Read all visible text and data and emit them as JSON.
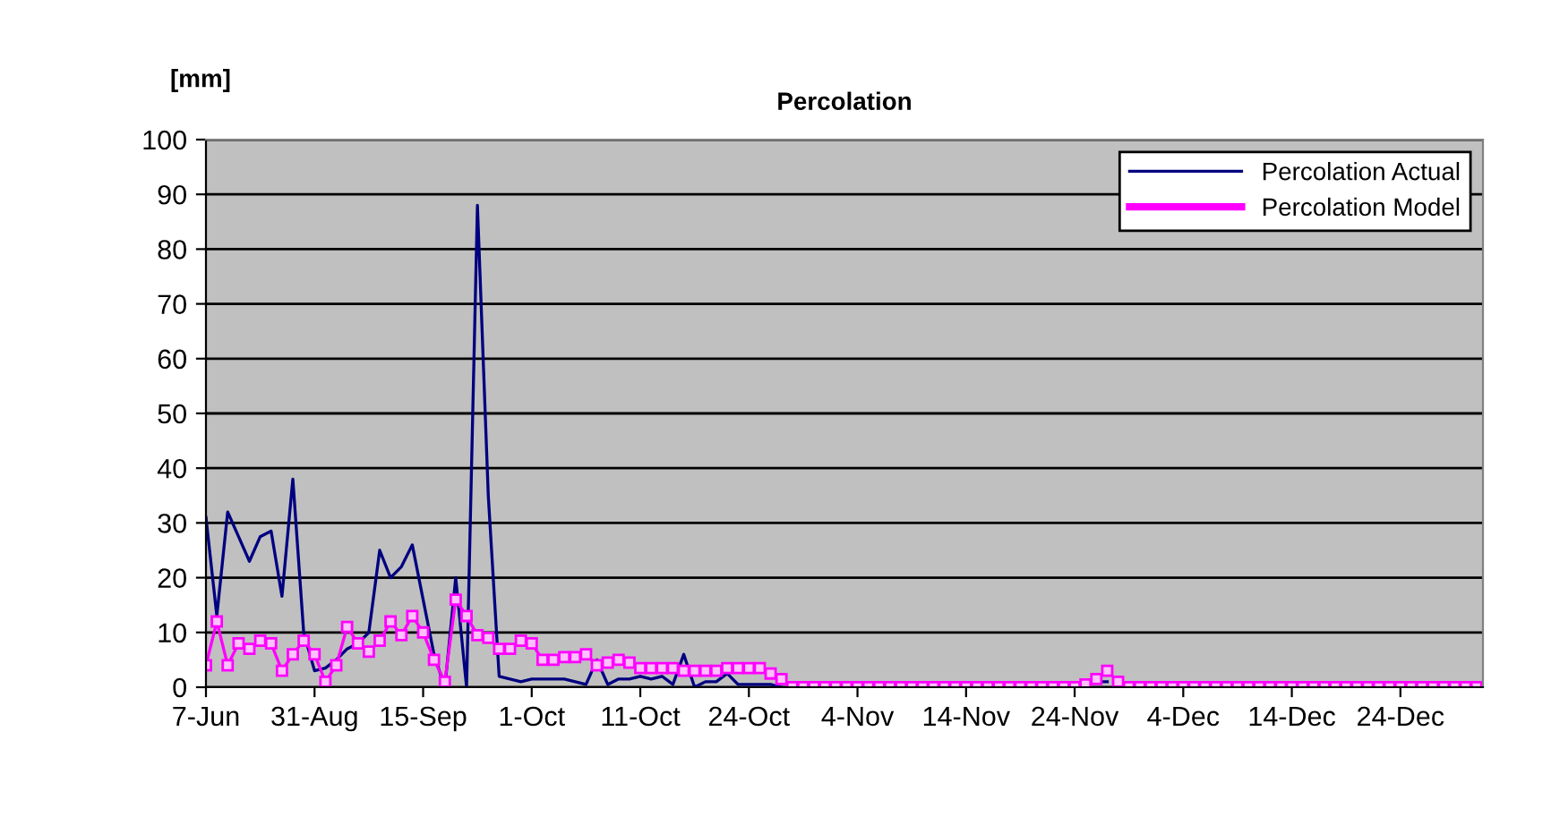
{
  "chart_data": {
    "type": "line",
    "title": "Percolation",
    "ylabel": "[mm]",
    "categories": [
      "7-Jun",
      null,
      null,
      null,
      null,
      null,
      null,
      null,
      null,
      null,
      "31-Aug",
      null,
      null,
      null,
      null,
      null,
      null,
      null,
      null,
      null,
      "15-Sep",
      null,
      null,
      null,
      null,
      null,
      null,
      null,
      null,
      null,
      "1-Oct",
      null,
      null,
      null,
      null,
      null,
      null,
      null,
      null,
      null,
      "11-Oct",
      null,
      null,
      null,
      null,
      null,
      null,
      null,
      null,
      null,
      "24-Oct",
      null,
      null,
      null,
      null,
      null,
      null,
      null,
      null,
      null,
      "4-Nov",
      null,
      null,
      null,
      null,
      null,
      null,
      null,
      null,
      null,
      "14-Nov",
      null,
      null,
      null,
      null,
      null,
      null,
      null,
      null,
      null,
      "24-Nov",
      null,
      null,
      null,
      null,
      null,
      null,
      null,
      null,
      null,
      "4-Dec",
      null,
      null,
      null,
      null,
      null,
      null,
      null,
      null,
      null,
      "14-Dec",
      null,
      null,
      null,
      null,
      null,
      null,
      null,
      null,
      null,
      "24-Dec",
      null,
      null,
      null,
      null,
      null,
      null,
      null
    ],
    "series": [
      {
        "name": "Percolation Actual",
        "color": "#000080",
        "marker": "none",
        "values": [
          31,
          13,
          32,
          27.5,
          23,
          27.5,
          28.5,
          16.6,
          38,
          10,
          3,
          3.5,
          5,
          7,
          8,
          10,
          25,
          20,
          22,
          26,
          16,
          6,
          0,
          20,
          0,
          88,
          35,
          2,
          1.5,
          1,
          1.5,
          1.5,
          1.5,
          1.5,
          1,
          0.5,
          5,
          0.5,
          1.5,
          1.5,
          2,
          1.5,
          2,
          0.5,
          6,
          0,
          1,
          1,
          2.5,
          0.5,
          0.5,
          0.5,
          0.5,
          0,
          null,
          null,
          null,
          null,
          null,
          null,
          null,
          null,
          null,
          null,
          null,
          null,
          null,
          null,
          null,
          null,
          null,
          null,
          null,
          null,
          null,
          null,
          null,
          null,
          null,
          null,
          null,
          null,
          1,
          1,
          null,
          null,
          null,
          null,
          null,
          null,
          null,
          null,
          null,
          null,
          null,
          null,
          null,
          null,
          null,
          null,
          null,
          null,
          null,
          null,
          null,
          null,
          null,
          null,
          null,
          null,
          null,
          null,
          null,
          null,
          null,
          null,
          null,
          null
        ]
      },
      {
        "name": "Percolation Model",
        "color": "#ff00ff",
        "marker": "square",
        "values": [
          4,
          12,
          4,
          8,
          7,
          8.5,
          8,
          3,
          6,
          8.5,
          6,
          1,
          4,
          11,
          8,
          6.5,
          8.5,
          12,
          9.5,
          13,
          10,
          5,
          1,
          16,
          13,
          9.5,
          9,
          7,
          7,
          8.5,
          8,
          5,
          5,
          5.5,
          5.5,
          6,
          4,
          4.5,
          5,
          4.5,
          3.5,
          3.5,
          3.5,
          3.5,
          3,
          3,
          3,
          3,
          3.5,
          3.5,
          3.5,
          3.5,
          2.5,
          1.5,
          0,
          0,
          0,
          0,
          0,
          0,
          0,
          0,
          0,
          0,
          0,
          0,
          0,
          0,
          0,
          0,
          0,
          0,
          0,
          0,
          0,
          0,
          0,
          0,
          0,
          0,
          0,
          0.5,
          1.5,
          3,
          1,
          0,
          0,
          0,
          0,
          0,
          0,
          0,
          0,
          0,
          0,
          0,
          0,
          0,
          0,
          0,
          0,
          0,
          0,
          0,
          0,
          0,
          0,
          0,
          0,
          0,
          0,
          0,
          0,
          0,
          0,
          0,
          0,
          0
        ]
      }
    ],
    "ylim": [
      0,
      100
    ],
    "yticks": [
      0,
      10,
      20,
      30,
      40,
      50,
      60,
      70,
      80,
      90,
      100
    ],
    "grid": "y",
    "legend": "top right"
  }
}
